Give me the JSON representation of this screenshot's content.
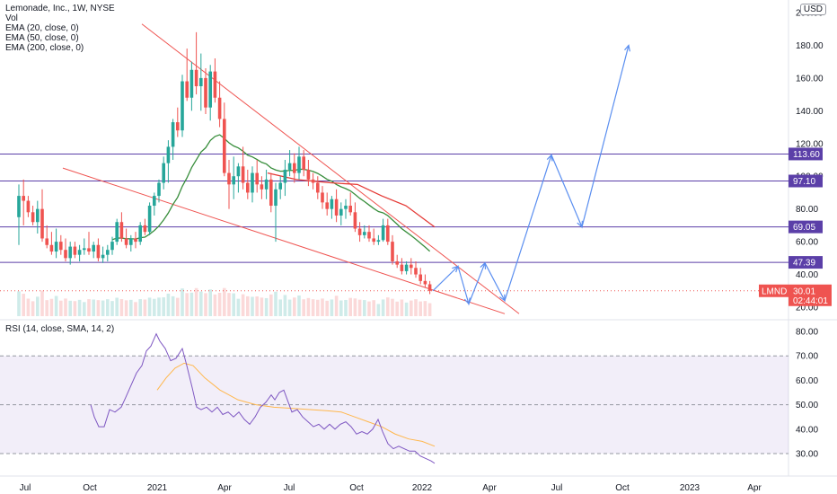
{
  "legend": {
    "title": "Lemonade, Inc., 1W, NYSE",
    "lines": [
      "Vol",
      "EMA (20, close, 0)",
      "EMA (50, close, 0)",
      "EMA (200, close, 0)"
    ]
  },
  "currency": "USD",
  "rsi_legend": "RSI (14, close, SMA, 14, 2)",
  "price_tag": {
    "symbol": "LMND",
    "price": "30.01",
    "countdown": "02:44:01"
  },
  "colors": {
    "up": "#26a69a",
    "down": "#ef5350",
    "ema20": "#388e3c",
    "ema50": "#e53935",
    "level": "#5b3fa8",
    "trend": "#ef5350",
    "projection": "#5b8ff0",
    "rsi": "#7e57c2",
    "rsi_sma": "#ffb74d",
    "rsi_band": "#7e57c2"
  },
  "chart_data": [
    {
      "type": "candlestick",
      "symbol": "LMND",
      "interval": "1W",
      "x_ticks": [
        "Jul",
        "Oct",
        "2021",
        "Apr",
        "Jul",
        "Oct",
        "2022",
        "Apr",
        "Jul",
        "Oct",
        "2023",
        "Apr"
      ],
      "y_ticks": [
        20,
        40,
        60,
        80,
        100,
        120,
        140,
        160,
        180,
        200
      ],
      "ylim": [
        15,
        205
      ],
      "price_levels": [
        113.6,
        97.1,
        69.05,
        47.39
      ],
      "level_labels": [
        "113.60",
        "97.10",
        "69.05",
        "47.39"
      ],
      "last_price": 30.01,
      "ohlc": [
        [
          75,
          95,
          58,
          88
        ],
        [
          88,
          98,
          70,
          85
        ],
        [
          85,
          88,
          75,
          78
        ],
        [
          78,
          82,
          70,
          72
        ],
        [
          72,
          85,
          65,
          80
        ],
        [
          80,
          92,
          60,
          62
        ],
        [
          62,
          70,
          56,
          58
        ],
        [
          58,
          66,
          52,
          54
        ],
        [
          54,
          68,
          50,
          60
        ],
        [
          60,
          64,
          52,
          55
        ],
        [
          55,
          62,
          48,
          50
        ],
        [
          50,
          60,
          46,
          57
        ],
        [
          57,
          60,
          50,
          52
        ],
        [
          52,
          58,
          48,
          55
        ],
        [
          55,
          62,
          52,
          56
        ],
        [
          56,
          66,
          52,
          54
        ],
        [
          54,
          60,
          50,
          58
        ],
        [
          58,
          62,
          48,
          50
        ],
        [
          50,
          57,
          47,
          52
        ],
        [
          52,
          58,
          48,
          55
        ],
        [
          55,
          63,
          52,
          60
        ],
        [
          60,
          74,
          58,
          72
        ],
        [
          72,
          78,
          60,
          62
        ],
        [
          62,
          68,
          56,
          58
        ],
        [
          58,
          64,
          54,
          62
        ],
        [
          62,
          66,
          56,
          60
        ],
        [
          60,
          72,
          58,
          70
        ],
        [
          70,
          74,
          64,
          66
        ],
        [
          66,
          84,
          64,
          82
        ],
        [
          82,
          90,
          76,
          88
        ],
        [
          88,
          98,
          84,
          96
        ],
        [
          96,
          112,
          92,
          108
        ],
        [
          108,
          122,
          96,
          118
        ],
        [
          118,
          135,
          110,
          133
        ],
        [
          133,
          142,
          124,
          128
        ],
        [
          128,
          162,
          124,
          158
        ],
        [
          158,
          178,
          146,
          148
        ],
        [
          148,
          170,
          140,
          165
        ],
        [
          165,
          188,
          150,
          155
        ],
        [
          155,
          175,
          140,
          160
        ],
        [
          160,
          166,
          138,
          142
        ],
        [
          142,
          168,
          134,
          164
        ],
        [
          164,
          172,
          145,
          148
        ],
        [
          148,
          158,
          130,
          135
        ],
        [
          135,
          145,
          100,
          102
        ],
        [
          102,
          110,
          80,
          95
        ],
        [
          95,
          112,
          86,
          100
        ],
        [
          100,
          108,
          90,
          106
        ],
        [
          106,
          118,
          92,
          96
        ],
        [
          96,
          104,
          86,
          90
        ],
        [
          90,
          106,
          84,
          102
        ],
        [
          102,
          110,
          90,
          95
        ],
        [
          95,
          100,
          86,
          92
        ],
        [
          92,
          104,
          86,
          98
        ],
        [
          98,
          102,
          78,
          82
        ],
        [
          82,
          96,
          60,
          92
        ],
        [
          92,
          100,
          86,
          96
        ],
        [
          96,
          110,
          88,
          104
        ],
        [
          104,
          116,
          100,
          108
        ],
        [
          108,
          114,
          96,
          102
        ],
        [
          102,
          118,
          98,
          112
        ],
        [
          112,
          116,
          100,
          104
        ],
        [
          104,
          110,
          94,
          98
        ],
        [
          98,
          102,
          92,
          96
        ],
        [
          96,
          100,
          86,
          90
        ],
        [
          90,
          94,
          80,
          84
        ],
        [
          84,
          90,
          76,
          80
        ],
        [
          80,
          88,
          74,
          86
        ],
        [
          86,
          92,
          72,
          76
        ],
        [
          76,
          84,
          70,
          80
        ],
        [
          80,
          86,
          74,
          82
        ],
        [
          82,
          90,
          76,
          78
        ],
        [
          78,
          84,
          66,
          68
        ],
        [
          68,
          72,
          60,
          64
        ],
        [
          64,
          70,
          62,
          66
        ],
        [
          66,
          70,
          60,
          62
        ],
        [
          62,
          68,
          58,
          60
        ],
        [
          60,
          64,
          58,
          61
        ],
        [
          61,
          74,
          60,
          70
        ],
        [
          70,
          74,
          58,
          60
        ],
        [
          60,
          64,
          46,
          48
        ],
        [
          48,
          52,
          44,
          46
        ],
        [
          46,
          50,
          40,
          42
        ],
        [
          42,
          48,
          40,
          46
        ],
        [
          46,
          50,
          40,
          44
        ],
        [
          44,
          48,
          38,
          40
        ],
        [
          40,
          44,
          34,
          36
        ],
        [
          36,
          40,
          32,
          34
        ],
        [
          34,
          36,
          28,
          30
        ]
      ],
      "ema20_series": [
        [
          298,
          78
        ],
        [
          335,
          88
        ],
        [
          352,
          78
        ],
        [
          380,
          78
        ],
        [
          398,
          74
        ],
        [
          425,
          70
        ],
        [
          448,
          60
        ],
        [
          470,
          52
        ],
        [
          484,
          48
        ]
      ],
      "ema50_series": [
        [
          298,
          102
        ],
        [
          330,
          98
        ],
        [
          368,
          96
        ],
        [
          398,
          95
        ],
        [
          425,
          88
        ],
        [
          452,
          82
        ],
        [
          484,
          69
        ]
      ],
      "trend_lines": [
        {
          "name": "upper",
          "from": [
            158,
            193
          ],
          "to": [
            578,
            16
          ]
        },
        {
          "name": "lower",
          "from": [
            70,
            105
          ],
          "to": [
            562,
            16
          ]
        }
      ],
      "projection_path": [
        [
          482,
          30
        ],
        [
          510,
          45
        ],
        [
          522,
          22
        ],
        [
          540,
          47
        ],
        [
          562,
          24
        ],
        [
          614,
          113
        ],
        [
          648,
          69
        ],
        [
          700,
          180
        ]
      ]
    },
    {
      "type": "line",
      "name": "RSI (14, close, SMA, 14, 2)",
      "y_ticks": [
        30,
        40,
        50,
        60,
        70,
        80
      ],
      "ylim": [
        23,
        85
      ],
      "band": [
        30,
        70
      ],
      "rsi": [
        [
          101,
          50
        ],
        [
          105,
          45
        ],
        [
          110,
          41
        ],
        [
          116,
          41
        ],
        [
          122,
          48
        ],
        [
          128,
          47
        ],
        [
          135,
          49
        ],
        [
          140,
          53
        ],
        [
          146,
          58
        ],
        [
          152,
          63
        ],
        [
          158,
          66
        ],
        [
          163,
          72
        ],
        [
          168,
          74
        ],
        [
          174,
          79
        ],
        [
          178,
          76
        ],
        [
          184,
          73
        ],
        [
          190,
          68
        ],
        [
          196,
          69
        ],
        [
          203,
          73
        ],
        [
          208,
          66
        ],
        [
          214,
          57
        ],
        [
          219,
          49
        ],
        [
          224,
          48
        ],
        [
          230,
          49
        ],
        [
          236,
          47
        ],
        [
          242,
          49
        ],
        [
          248,
          46
        ],
        [
          254,
          47
        ],
        [
          260,
          45
        ],
        [
          266,
          47
        ],
        [
          272,
          44
        ],
        [
          278,
          42
        ],
        [
          284,
          45
        ],
        [
          290,
          49
        ],
        [
          296,
          51
        ],
        [
          302,
          54
        ],
        [
          306,
          52
        ],
        [
          311,
          55
        ],
        [
          316,
          56
        ],
        [
          320,
          52
        ],
        [
          325,
          47
        ],
        [
          331,
          48
        ],
        [
          337,
          45
        ],
        [
          343,
          43
        ],
        [
          349,
          41
        ],
        [
          355,
          42
        ],
        [
          361,
          40
        ],
        [
          367,
          42
        ],
        [
          373,
          40
        ],
        [
          379,
          42
        ],
        [
          385,
          43
        ],
        [
          391,
          41
        ],
        [
          397,
          38
        ],
        [
          403,
          39
        ],
        [
          409,
          38
        ],
        [
          415,
          40
        ],
        [
          421,
          44
        ],
        [
          426,
          39
        ],
        [
          432,
          34
        ],
        [
          438,
          32
        ],
        [
          444,
          33
        ],
        [
          450,
          32
        ],
        [
          456,
          31
        ],
        [
          462,
          31
        ],
        [
          468,
          29
        ],
        [
          474,
          28
        ],
        [
          480,
          27
        ],
        [
          484,
          26
        ]
      ],
      "rsi_sma": [
        [
          175,
          56
        ],
        [
          185,
          61
        ],
        [
          195,
          65
        ],
        [
          205,
          67
        ],
        [
          215,
          66
        ],
        [
          228,
          61
        ],
        [
          245,
          56
        ],
        [
          265,
          52
        ],
        [
          285,
          50
        ],
        [
          305,
          49
        ],
        [
          325,
          48.5
        ],
        [
          345,
          48
        ],
        [
          365,
          47.5
        ],
        [
          380,
          47
        ],
        [
          395,
          45
        ],
        [
          410,
          43
        ],
        [
          425,
          41
        ],
        [
          440,
          38
        ],
        [
          455,
          36
        ],
        [
          470,
          35
        ],
        [
          484,
          33
        ]
      ]
    }
  ]
}
